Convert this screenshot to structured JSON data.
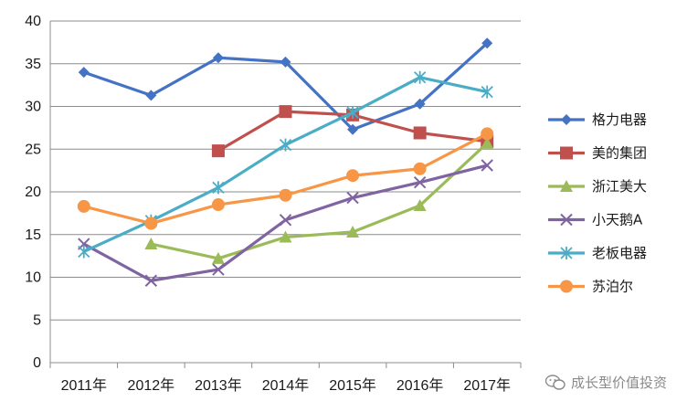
{
  "chart_data": {
    "type": "line",
    "categories": [
      "2011年",
      "2012年",
      "2013年",
      "2014年",
      "2015年",
      "2016年",
      "2017年"
    ],
    "ylim": [
      0,
      40
    ],
    "yticks": [
      0,
      5,
      10,
      15,
      20,
      25,
      30,
      35,
      40
    ],
    "grid": "horizontal",
    "legend_position": "right",
    "series": [
      {
        "name": "格力电器",
        "color": "#4472c4",
        "marker": "diamond",
        "values": [
          34.0,
          31.3,
          35.7,
          35.2,
          27.3,
          30.3,
          37.4
        ]
      },
      {
        "name": "美的集团",
        "color": "#c0504d",
        "marker": "square",
        "values": [
          null,
          null,
          24.8,
          29.4,
          29.0,
          26.9,
          25.9
        ]
      },
      {
        "name": "浙江美大",
        "color": "#9bbb59",
        "marker": "triangle",
        "values": [
          null,
          13.9,
          12.2,
          14.7,
          15.3,
          18.4,
          25.7
        ]
      },
      {
        "name": "小天鹅A",
        "color": "#8064a2",
        "marker": "x",
        "values": [
          13.9,
          9.6,
          10.9,
          16.7,
          19.3,
          21.1,
          23.1
        ]
      },
      {
        "name": "老板电器",
        "color": "#4bacc6",
        "marker": "star",
        "values": [
          13.0,
          16.6,
          20.5,
          25.5,
          29.3,
          33.4,
          31.7
        ]
      },
      {
        "name": "苏泊尔",
        "color": "#f79646",
        "marker": "circle",
        "values": [
          18.3,
          16.3,
          18.5,
          19.6,
          21.9,
          22.7,
          26.8
        ]
      }
    ]
  },
  "watermark": {
    "text": "成长型价值投资",
    "icon": "wechat-icon"
  }
}
